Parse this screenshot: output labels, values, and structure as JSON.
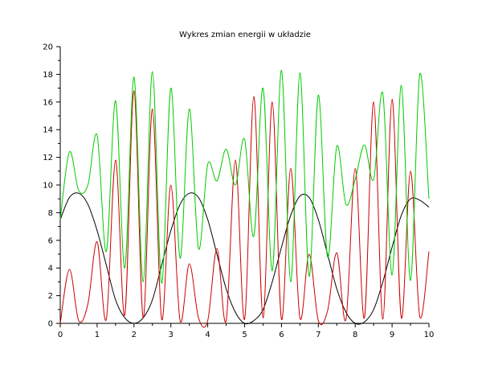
{
  "chart_data": {
    "type": "line",
    "title": "Wykres zmian energii w układzie",
    "xlabel": "",
    "ylabel": "",
    "xlim": [
      0,
      10
    ],
    "ylim": [
      0,
      20
    ],
    "x_ticks": [
      "0",
      "1",
      "2",
      "3",
      "4",
      "5",
      "6",
      "7",
      "8",
      "9",
      "10"
    ],
    "y_ticks": [
      "0",
      "2",
      "4",
      "6",
      "8",
      "10",
      "12",
      "14",
      "16",
      "18",
      "20"
    ],
    "grid": false,
    "legend": "none",
    "x": [
      0,
      0.25,
      0.5,
      0.75,
      1,
      1.25,
      1.5,
      1.75,
      2,
      2.25,
      2.5,
      2.75,
      3,
      3.25,
      3.5,
      3.75,
      4,
      4.25,
      4.5,
      4.75,
      5,
      5.25,
      5.5,
      5.75,
      6,
      6.25,
      6.5,
      6.75,
      7,
      7.25,
      7.5,
      7.75,
      8,
      8.25,
      8.5,
      8.75,
      9,
      9.25,
      9.5,
      9.75,
      10
    ],
    "series": [
      {
        "color": "#000000",
        "values": [
          7.5,
          9.1,
          9.4,
          8.6,
          6.7,
          4.2,
          1.7,
          0.4,
          0.0,
          0.4,
          1.7,
          4.2,
          6.7,
          8.6,
          9.4,
          9.1,
          7.5,
          5.0,
          2.5,
          0.8,
          0.0,
          0.2,
          1.0,
          3.0,
          5.5,
          7.8,
          9.2,
          9.1,
          7.5,
          5.0,
          2.5,
          0.8,
          0.0,
          0.1,
          1.0,
          3.0,
          5.5,
          7.8,
          9.0,
          8.9,
          8.4
        ]
      },
      {
        "color": "#cc0000",
        "values": [
          0.0,
          3.9,
          0.2,
          1.4,
          5.9,
          0.3,
          11.8,
          0.6,
          16.8,
          0.4,
          15.5,
          0.3,
          10.0,
          0.2,
          4.3,
          0.4,
          0.2,
          5.4,
          0.2,
          11.8,
          0.3,
          16.4,
          0.4,
          16.0,
          0.3,
          11.2,
          0.4,
          5.0,
          0.2,
          0.9,
          5.1,
          0.3,
          11.2,
          0.4,
          16.0,
          0.3,
          16.2,
          0.4,
          11.0,
          0.5,
          5.2
        ]
      },
      {
        "color": "#00cc00",
        "values": [
          7.5,
          12.4,
          9.6,
          10.0,
          13.6,
          5.2,
          16.1,
          4.0,
          17.8,
          3.0,
          18.2,
          2.9,
          17.0,
          4.7,
          15.5,
          5.4,
          11.5,
          10.3,
          12.6,
          10.0,
          13.3,
          6.3,
          17.0,
          3.8,
          18.3,
          3.0,
          18.1,
          3.4,
          16.5,
          4.8,
          12.8,
          8.6,
          10.4,
          12.9,
          10.4,
          16.6,
          3.5,
          17.2,
          3.1,
          18.0,
          9.0
        ]
      }
    ]
  }
}
